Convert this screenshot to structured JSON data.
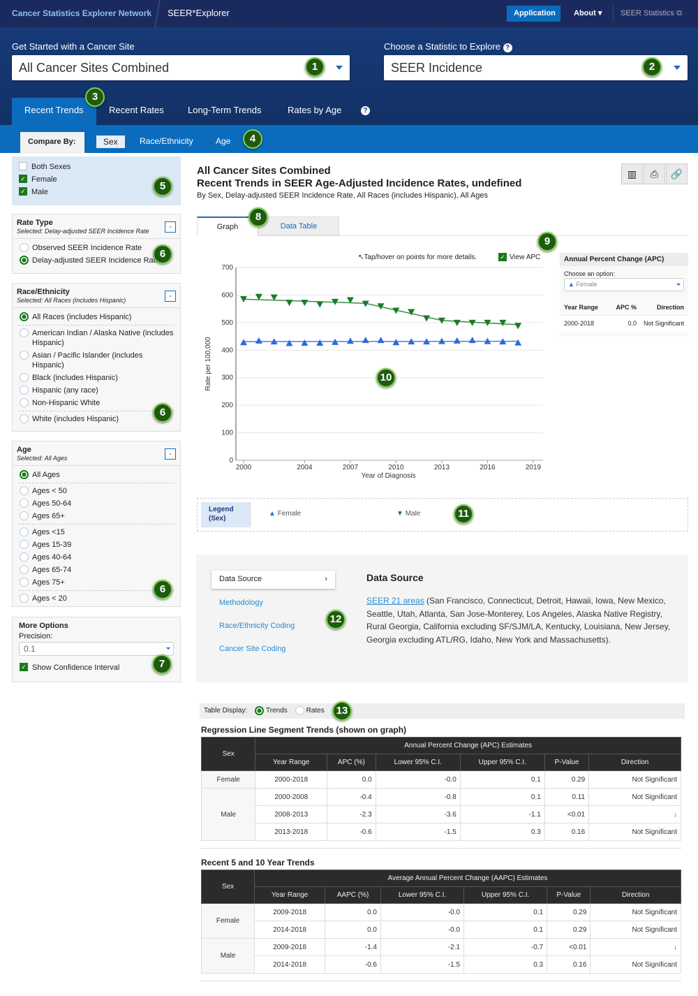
{
  "header": {
    "brand": "Cancer Statistics Explorer Network",
    "app": "SEER*Explorer",
    "nav": [
      "Application",
      "About",
      "SEER Statistics"
    ]
  },
  "site": {
    "label": "Get Started with a Cancer Site",
    "value": "All Cancer Sites Combined"
  },
  "statistic": {
    "label": "Choose a Statistic to Explore",
    "value": "SEER Incidence",
    "help": "?"
  },
  "tabs": [
    "Recent Trends",
    "Recent Rates",
    "Long-Term Trends",
    "Rates by Age"
  ],
  "tabs_help": "?",
  "compare": {
    "label": "Compare By:",
    "options": [
      "Sex",
      "Race/Ethnicity",
      "Age"
    ]
  },
  "sex": {
    "options": [
      {
        "label": "Both Sexes",
        "checked": false
      },
      {
        "label": "Female",
        "checked": true
      },
      {
        "label": "Male",
        "checked": true
      }
    ]
  },
  "rate_type": {
    "title": "Rate Type",
    "selected": "Selected: Delay-adjusted SEER Incidence Rate",
    "options": [
      "Observed SEER Incidence Rate",
      "Delay-adjusted SEER Incidence Rate"
    ],
    "collapse": "-"
  },
  "race": {
    "title": "Race/Ethnicity",
    "selected": "Selected: All Races (includes Hispanic)",
    "options": [
      "All Races (includes Hispanic)",
      "American Indian / Alaska Native (includes Hispanic)",
      "Asian / Pacific Islander (includes Hispanic)",
      "Black (includes Hispanic)",
      "Hispanic (any race)",
      "Non-Hispanic White",
      "White (includes Hispanic)"
    ],
    "collapse": "-"
  },
  "age": {
    "title": "Age",
    "selected": "Selected: All Ages",
    "options": [
      "All Ages",
      "Ages < 50",
      "Ages 50-64",
      "Ages 65+",
      "Ages <15",
      "Ages 15-39",
      "Ages 40-64",
      "Ages 65-74",
      "Ages 75+",
      "Ages < 20"
    ],
    "collapse": "-"
  },
  "more": {
    "title": "More Options",
    "precision_label": "Precision:",
    "precision": "0.1",
    "ci": "Show Confidence Interval"
  },
  "main": {
    "title1": "All Cancer Sites Combined",
    "title2": "Recent Trends in SEER Age-Adjusted Incidence Rates, undefined",
    "subtitle": "By Sex, Delay-adjusted SEER Incidence Rate, All Races (includes Hispanic), All Ages",
    "view_tabs": [
      "Graph",
      "Data Table"
    ],
    "hint": "Tap/hover on points for more details.",
    "view_apc": "View APC"
  },
  "apc_panel": {
    "title": "Annual Percent Change (APC)",
    "choose": "Choose an option:",
    "option": "Female",
    "headers": [
      "Year Range",
      "APC %",
      "Direction"
    ],
    "row": [
      "2000-2018",
      "0.0",
      "Not Significant"
    ]
  },
  "legend": {
    "title": "Legend (Sex)",
    "items": [
      "Female",
      "Male"
    ]
  },
  "chart_data": {
    "type": "line",
    "xlabel": "Year of Diagnosis",
    "ylabel": "Rate per 100,000",
    "ylim": [
      0,
      700
    ],
    "xlim": [
      1999.5,
      2019.5
    ],
    "yticks": [
      0,
      100,
      200,
      300,
      400,
      500,
      600,
      700
    ],
    "xticks": [
      2000,
      2004,
      2007,
      2010,
      2013,
      2016,
      2019
    ],
    "x": [
      2000,
      2001,
      2002,
      2003,
      2004,
      2005,
      2006,
      2007,
      2008,
      2009,
      2010,
      2011,
      2012,
      2013,
      2014,
      2015,
      2016,
      2017,
      2018
    ],
    "series": [
      {
        "name": "Female",
        "color": "#2a6ae0",
        "marker": "triangle-up",
        "values": [
          428,
          434,
          431,
          425,
          426,
          426,
          429,
          433,
          436,
          436,
          428,
          431,
          431,
          432,
          434,
          436,
          432,
          431,
          427
        ],
        "trend": [
          [
            2000,
            431
          ],
          [
            2018,
            432
          ]
        ]
      },
      {
        "name": "Male",
        "color": "#1a7a2a",
        "marker": "triangle-down",
        "values": [
          586,
          594,
          592,
          573,
          573,
          567,
          576,
          582,
          569,
          560,
          544,
          539,
          516,
          508,
          500,
          500,
          500,
          500,
          489
        ],
        "trend": [
          [
            2000,
            585
          ],
          [
            2008,
            570
          ],
          [
            2013,
            508
          ],
          [
            2018,
            492
          ]
        ]
      }
    ],
    "grid": true
  },
  "info": {
    "menu": [
      "Data Source",
      "Methodology",
      "Race/Ethnicity Coding",
      "Cancer Site Coding"
    ],
    "title": "Data Source",
    "link": "SEER 21 areas",
    "text": " (San Francisco, Connecticut, Detroit, Hawaii, Iowa, New Mexico, Seattle, Utah, Atlanta, San Jose-Monterey, Los Angeles, Alaska Native Registry, Rural Georgia, California excluding SF/SJM/LA, Kentucky, Louisiana, New Jersey, Georgia excluding ATL/RG, Idaho, New York and Massachusetts)."
  },
  "table_display": {
    "label": "Table Display:",
    "options": [
      "Trends",
      "Rates"
    ]
  },
  "reg_table": {
    "title": "Regression Line Segment Trends (shown on graph)",
    "group": "Annual Percent Change (APC) Estimates",
    "headers": [
      "Sex",
      "Year Range",
      "APC (%)",
      "Lower 95% C.I.",
      "Upper 95% C.I.",
      "P-Value",
      "Direction"
    ],
    "rows": [
      [
        "Female",
        "2000-2018",
        "0.0",
        "-0.0",
        "0.1",
        "0.29",
        "Not Significant"
      ],
      [
        "Male",
        "2000-2008",
        "-0.4",
        "-0.8",
        "0.1",
        "0.11",
        "Not Significant"
      ],
      [
        "",
        "2008-2013",
        "-2.3",
        "-3.6",
        "-1.1",
        "<0.01",
        "↓"
      ],
      [
        "",
        "2013-2018",
        "-0.6",
        "-1.5",
        "0.3",
        "0.16",
        "Not Significant"
      ]
    ]
  },
  "aapc_table": {
    "title": "Recent 5 and 10 Year Trends",
    "group": "Average Annual Percent Change (AAPC) Estimates",
    "headers": [
      "Sex",
      "Year Range",
      "AAPC (%)",
      "Lower 95% C.I.",
      "Upper 95% C.I.",
      "P-Value",
      "Direction"
    ],
    "rows": [
      [
        "Female",
        "2009-2018",
        "0.0",
        "-0.0",
        "0.1",
        "0.29",
        "Not Significant"
      ],
      [
        "",
        "2014-2018",
        "0.0",
        "-0.0",
        "0.1",
        "0.29",
        "Not Significant"
      ],
      [
        "Male",
        "2009-2018",
        "-1.4",
        "-2.1",
        "-0.7",
        "<0.01",
        "↓"
      ],
      [
        "",
        "2014-2018",
        "-0.6",
        "-1.5",
        "0.3",
        "0.16",
        "Not Significant"
      ]
    ]
  },
  "callouts": [
    "1",
    "2",
    "3",
    "4",
    "5",
    "6",
    "6",
    "6",
    "7",
    "8",
    "9",
    "10",
    "11",
    "12",
    "13"
  ]
}
